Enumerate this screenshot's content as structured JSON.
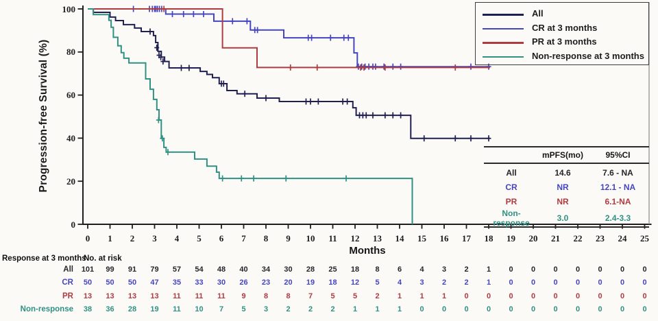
{
  "y_axis": {
    "title": "Progression-free Survival (%)",
    "ticks": [
      "0",
      "20",
      "40",
      "60",
      "80",
      "100"
    ]
  },
  "x_axis": {
    "title": "Months",
    "ticks": [
      "0",
      "1",
      "2",
      "3",
      "4",
      "5",
      "6",
      "7",
      "8",
      "9",
      "10",
      "11",
      "12",
      "13",
      "14",
      "15",
      "16",
      "17",
      "18",
      "19",
      "20",
      "21",
      "22",
      "23",
      "24",
      "25"
    ]
  },
  "legend": {
    "items": [
      {
        "label": "All",
        "color": "#1f1f52"
      },
      {
        "label": "CR at 3 months",
        "color": "#4545c2"
      },
      {
        "label": "PR at 3 months",
        "color": "#ae3b40"
      },
      {
        "label": "Non-response at 3 months",
        "color": "#2f9083"
      }
    ]
  },
  "inset_table": {
    "headers": [
      "mPFS(mo)",
      "95%CI"
    ],
    "rows": [
      {
        "label": "All",
        "mpfs": "14.6",
        "ci": "7.6 - NA",
        "color": "#26262a"
      },
      {
        "label": "CR",
        "mpfs": "NR",
        "ci": "12.1 - NA",
        "color": "#4545c2"
      },
      {
        "label": "PR",
        "mpfs": "NR",
        "ci": "6.1-NA",
        "color": "#ae3b40"
      },
      {
        "label": "Non-response",
        "mpfs": "3.0",
        "ci": "2.4-3.3",
        "color": "#2f9083"
      }
    ]
  },
  "risk_table": {
    "title": "Response at 3 months",
    "subtitle": "No. at risk",
    "rows": [
      {
        "label": "All",
        "color": "#26262a",
        "counts": [
          101,
          99,
          91,
          79,
          57,
          54,
          48,
          40,
          34,
          30,
          28,
          25,
          18,
          8,
          6,
          4,
          3,
          2,
          1,
          0,
          0,
          0,
          0,
          0,
          0,
          0
        ]
      },
      {
        "label": "CR",
        "color": "#4545c2",
        "counts": [
          50,
          50,
          50,
          47,
          35,
          33,
          30,
          26,
          23,
          20,
          19,
          18,
          12,
          5,
          4,
          3,
          2,
          2,
          1,
          0,
          0,
          0,
          0,
          0,
          0,
          0
        ]
      },
      {
        "label": "PR",
        "color": "#ae3b40",
        "counts": [
          13,
          13,
          13,
          13,
          11,
          11,
          11,
          9,
          8,
          8,
          7,
          5,
          5,
          2,
          1,
          1,
          1,
          0,
          0,
          0,
          0,
          0,
          0,
          0,
          0,
          0
        ]
      },
      {
        "label": "Non-response",
        "color": "#2f9083",
        "counts": [
          38,
          36,
          28,
          19,
          11,
          10,
          7,
          5,
          3,
          2,
          2,
          2,
          1,
          1,
          1,
          0,
          0,
          0,
          0,
          0,
          0,
          0,
          0,
          0,
          0,
          0
        ]
      }
    ]
  },
  "chart_data": {
    "type": "line",
    "subtype": "kaplan-meier-step",
    "title": "",
    "xlabel": "Months",
    "ylabel": "Progression-free Survival (%)",
    "xlim": [
      0,
      25
    ],
    "ylim": [
      0,
      100
    ],
    "x_ticks": [
      0,
      1,
      2,
      3,
      4,
      5,
      6,
      7,
      8,
      9,
      10,
      11,
      12,
      13,
      14,
      15,
      16,
      17,
      18,
      19,
      20,
      21,
      22,
      23,
      24,
      25
    ],
    "y_ticks": [
      0,
      20,
      40,
      60,
      80,
      100
    ],
    "legend_position": "top-right",
    "series": [
      {
        "name": "All",
        "color": "#1f1f52",
        "points": [
          [
            0,
            100
          ],
          [
            0.25,
            98.4
          ],
          [
            1.0,
            96.2
          ],
          [
            1.25,
            94.6
          ],
          [
            1.6,
            92.7
          ],
          [
            2.1,
            91.1
          ],
          [
            2.4,
            89.5
          ],
          [
            2.95,
            87.6
          ],
          [
            3.05,
            84.4
          ],
          [
            3.15,
            80.3
          ],
          [
            3.3,
            77.6
          ],
          [
            3.45,
            75.6
          ],
          [
            3.65,
            72.6
          ],
          [
            5.05,
            71.0
          ],
          [
            5.35,
            69.6
          ],
          [
            5.6,
            68.1
          ],
          [
            5.9,
            65.3
          ],
          [
            6.25,
            62.1
          ],
          [
            6.7,
            60.6
          ],
          [
            7.6,
            58.6
          ],
          [
            8.6,
            57.0
          ],
          [
            11.9,
            54.1
          ],
          [
            12.05,
            50.6
          ],
          [
            14.5,
            39.9
          ],
          [
            18.05,
            39.9
          ]
        ],
        "censors": [
          [
            2.8,
            89.5
          ],
          [
            3.1,
            82.0
          ],
          [
            3.2,
            78.5
          ],
          [
            3.28,
            77.6
          ],
          [
            3.38,
            75.6
          ],
          [
            4.2,
            72.6
          ],
          [
            4.55,
            72.6
          ],
          [
            6.0,
            65.3
          ],
          [
            6.1,
            65.3
          ],
          [
            7.05,
            60.6
          ],
          [
            8.0,
            58.6
          ],
          [
            9.8,
            57.0
          ],
          [
            10.0,
            57.0
          ],
          [
            10.35,
            57.0
          ],
          [
            11.45,
            57.0
          ],
          [
            11.65,
            57.0
          ],
          [
            12.2,
            50.6
          ],
          [
            12.35,
            50.6
          ],
          [
            12.5,
            50.6
          ],
          [
            12.8,
            50.6
          ],
          [
            13.35,
            50.6
          ],
          [
            13.7,
            50.6
          ],
          [
            14.05,
            50.6
          ],
          [
            15.1,
            39.9
          ],
          [
            16.5,
            39.9
          ],
          [
            17.2,
            39.9
          ],
          [
            18.0,
            39.9
          ]
        ]
      },
      {
        "name": "CR at 3 months",
        "color": "#4545c2",
        "points": [
          [
            0,
            100
          ],
          [
            3.5,
            97.6
          ],
          [
            5.66,
            94.3
          ],
          [
            7.3,
            90.2
          ],
          [
            8.8,
            86.6
          ],
          [
            11.95,
            79.6
          ],
          [
            12.1,
            73.2
          ],
          [
            18.06,
            73.2
          ]
        ],
        "censors": [
          [
            2.05,
            100
          ],
          [
            2.77,
            100
          ],
          [
            2.9,
            100
          ],
          [
            3.0,
            100
          ],
          [
            3.06,
            100
          ],
          [
            3.13,
            100
          ],
          [
            3.22,
            100
          ],
          [
            3.32,
            100
          ],
          [
            3.8,
            97.6
          ],
          [
            4.3,
            97.6
          ],
          [
            4.75,
            97.6
          ],
          [
            5.2,
            97.6
          ],
          [
            6.5,
            94.3
          ],
          [
            7.15,
            94.3
          ],
          [
            7.5,
            90.2
          ],
          [
            7.62,
            90.2
          ],
          [
            9.9,
            86.6
          ],
          [
            10.05,
            86.6
          ],
          [
            10.9,
            86.6
          ],
          [
            11.5,
            86.6
          ],
          [
            11.7,
            86.6
          ],
          [
            12.15,
            73.2
          ],
          [
            12.3,
            73.2
          ],
          [
            12.45,
            73.2
          ],
          [
            12.62,
            73.2
          ],
          [
            12.8,
            73.2
          ],
          [
            12.92,
            73.2
          ],
          [
            13.3,
            73.2
          ],
          [
            13.7,
            73.2
          ],
          [
            14.05,
            73.2
          ],
          [
            17.2,
            73.2
          ],
          [
            18.0,
            73.2
          ]
        ]
      },
      {
        "name": "PR at 3 months",
        "color": "#ae3b40",
        "points": [
          [
            0,
            100
          ],
          [
            6.05,
            81.9
          ],
          [
            7.6,
            72.8
          ],
          [
            18.06,
            72.8
          ]
        ],
        "censors": [
          [
            3.42,
            100
          ],
          [
            9.1,
            72.8
          ],
          [
            10.3,
            72.8
          ],
          [
            12.25,
            72.8
          ],
          [
            12.4,
            72.8
          ],
          [
            13.35,
            72.8
          ],
          [
            16.5,
            72.8
          ]
        ]
      },
      {
        "name": "Non-response at 3 months",
        "color": "#2f9083",
        "points": [
          [
            0,
            100
          ],
          [
            0.25,
            97.4
          ],
          [
            0.95,
            94.7
          ],
          [
            1.05,
            91.5
          ],
          [
            1.15,
            86.8
          ],
          [
            1.35,
            82.9
          ],
          [
            1.5,
            79.7
          ],
          [
            1.62,
            77.1
          ],
          [
            1.85,
            74.9
          ],
          [
            2.6,
            67.5
          ],
          [
            2.8,
            62.7
          ],
          [
            2.95,
            58.0
          ],
          [
            3.1,
            53.2
          ],
          [
            3.2,
            48.4
          ],
          [
            3.3,
            39.9
          ],
          [
            3.42,
            35.7
          ],
          [
            3.52,
            33.5
          ],
          [
            4.8,
            30.3
          ],
          [
            5.35,
            27.0
          ],
          [
            5.78,
            24.2
          ],
          [
            5.9,
            21.3
          ],
          [
            14.57,
            21.3
          ],
          [
            14.57,
            0
          ]
        ],
        "censors": [
          [
            3.18,
            48.4
          ],
          [
            3.35,
            39.9
          ],
          [
            3.6,
            33.5
          ],
          [
            6.05,
            21.3
          ],
          [
            6.9,
            21.3
          ],
          [
            7.45,
            21.3
          ],
          [
            8.9,
            21.3
          ],
          [
            11.6,
            21.3
          ]
        ]
      }
    ]
  }
}
